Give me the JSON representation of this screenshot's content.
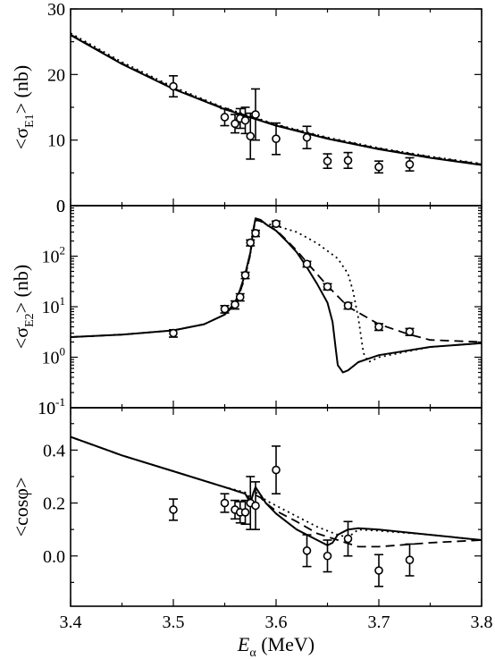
{
  "chart_data": [
    {
      "type": "line",
      "ylabel_parts": {
        "open": "<σ",
        "sub": "E1",
        "close": "> (nb)"
      },
      "xlim": [
        3.4,
        3.8
      ],
      "ylim": [
        0,
        30
      ],
      "y_scale": "linear",
      "yticks": [
        0,
        10,
        20,
        30
      ],
      "ytick_labels": [
        "0",
        "10",
        "20",
        "30"
      ],
      "series": [
        {
          "style": "solid",
          "x": [
            3.4,
            3.45,
            3.5,
            3.55,
            3.6,
            3.65,
            3.7,
            3.75,
            3.8
          ],
          "y": [
            26.0,
            21.6,
            17.8,
            14.7,
            12.2,
            10.2,
            8.6,
            7.3,
            6.2
          ]
        },
        {
          "style": "dotted",
          "x": [
            3.4,
            3.45,
            3.5,
            3.55,
            3.6,
            3.65,
            3.7,
            3.75,
            3.8
          ],
          "y": [
            26.3,
            21.9,
            18.1,
            14.9,
            12.4,
            10.4,
            8.8,
            7.5,
            6.4
          ]
        },
        {
          "style": "dashed",
          "x": [
            3.4,
            3.45,
            3.5,
            3.55,
            3.6,
            3.65,
            3.7,
            3.75,
            3.8
          ],
          "y": [
            26.1,
            21.7,
            17.9,
            14.8,
            12.3,
            10.3,
            8.7,
            7.4,
            6.3
          ]
        }
      ],
      "points": [
        {
          "x": 3.5,
          "y": 18.2,
          "err": 1.6
        },
        {
          "x": 3.55,
          "y": 13.5,
          "err": 1.3
        },
        {
          "x": 3.56,
          "y": 12.5,
          "err": 1.4
        },
        {
          "x": 3.565,
          "y": 13.3,
          "err": 1.5
        },
        {
          "x": 3.57,
          "y": 13.0,
          "err": 2.0
        },
        {
          "x": 3.575,
          "y": 10.6,
          "err": 3.5
        },
        {
          "x": 3.58,
          "y": 13.9,
          "err": 3.9
        },
        {
          "x": 3.6,
          "y": 10.2,
          "err": 2.4
        },
        {
          "x": 3.63,
          "y": 10.4,
          "err": 1.7
        },
        {
          "x": 3.65,
          "y": 6.8,
          "err": 1.1
        },
        {
          "x": 3.67,
          "y": 6.9,
          "err": 1.2
        },
        {
          "x": 3.7,
          "y": 5.9,
          "err": 0.9
        },
        {
          "x": 3.73,
          "y": 6.3,
          "err": 1.0
        }
      ]
    },
    {
      "type": "line",
      "ylabel_parts": {
        "open": "<σ",
        "sub": "E2",
        "close": "> (nb)"
      },
      "xlim": [
        3.4,
        3.8
      ],
      "ylim": [
        0.1,
        1000
      ],
      "y_scale": "log",
      "yticks": [
        0.1,
        1,
        10,
        100
      ],
      "ytick_labels": [
        [
          "10",
          "-1"
        ],
        [
          "10",
          "0"
        ],
        [
          "10",
          "1"
        ],
        [
          "10",
          "2"
        ]
      ],
      "top_label": "0",
      "series": [
        {
          "style": "solid",
          "x": [
            3.4,
            3.45,
            3.5,
            3.53,
            3.55,
            3.56,
            3.565,
            3.57,
            3.575,
            3.578,
            3.58,
            3.585,
            3.59,
            3.6,
            3.61,
            3.62,
            3.63,
            3.64,
            3.65,
            3.655,
            3.658,
            3.66,
            3.665,
            3.67,
            3.68,
            3.7,
            3.75,
            3.8
          ],
          "y": [
            2.5,
            2.8,
            3.4,
            4.5,
            7.0,
            12,
            22,
            45,
            120,
            350,
            560,
            520,
            430,
            320,
            200,
            120,
            60,
            28,
            12,
            5,
            1.5,
            0.7,
            0.5,
            0.55,
            0.8,
            1.1,
            1.6,
            1.9
          ]
        },
        {
          "style": "dashed",
          "x": [
            3.4,
            3.45,
            3.5,
            3.53,
            3.55,
            3.56,
            3.565,
            3.57,
            3.575,
            3.578,
            3.58,
            3.585,
            3.59,
            3.6,
            3.61,
            3.62,
            3.63,
            3.65,
            3.67,
            3.7,
            3.73,
            3.75,
            3.8
          ],
          "y": [
            2.5,
            2.8,
            3.4,
            4.5,
            7.0,
            11,
            20,
            40,
            110,
            320,
            520,
            490,
            420,
            330,
            210,
            130,
            75,
            26,
            10,
            4.5,
            2.8,
            2.2,
            2.0
          ]
        },
        {
          "style": "dotted",
          "x": [
            3.4,
            3.45,
            3.5,
            3.53,
            3.55,
            3.56,
            3.565,
            3.57,
            3.575,
            3.578,
            3.58,
            3.585,
            3.59,
            3.6,
            3.62,
            3.64,
            3.66,
            3.67,
            3.675,
            3.68,
            3.685,
            3.69,
            3.7,
            3.75,
            3.8
          ],
          "y": [
            2.5,
            2.8,
            3.4,
            4.5,
            7.0,
            11,
            20,
            40,
            110,
            320,
            520,
            500,
            440,
            400,
            300,
            180,
            90,
            45,
            20,
            6,
            1.2,
            0.8,
            1.0,
            1.6,
            1.9
          ]
        }
      ],
      "points": [
        {
          "x": 3.5,
          "y": 3.0,
          "err": 0.5
        },
        {
          "x": 3.55,
          "y": 9.0,
          "err": 1.5
        },
        {
          "x": 3.56,
          "y": 11.0,
          "err": 2.0
        },
        {
          "x": 3.565,
          "y": 15.5,
          "err": 2.5
        },
        {
          "x": 3.57,
          "y": 42,
          "err": 6
        },
        {
          "x": 3.575,
          "y": 185,
          "err": 25
        },
        {
          "x": 3.58,
          "y": 285,
          "err": 40
        },
        {
          "x": 3.6,
          "y": 440,
          "err": 55
        },
        {
          "x": 3.63,
          "y": 70,
          "err": 9
        },
        {
          "x": 3.65,
          "y": 25,
          "err": 3.5
        },
        {
          "x": 3.67,
          "y": 10.5,
          "err": 1.5
        },
        {
          "x": 3.7,
          "y": 4.0,
          "err": 0.6
        },
        {
          "x": 3.73,
          "y": 3.2,
          "err": 0.5
        }
      ]
    },
    {
      "type": "line",
      "ylabel_parts": {
        "open": "<cosφ>",
        "sub": "",
        "close": ""
      },
      "xlabel_parts": {
        "italic": "E",
        "sub": "α",
        "rest": " (MeV)"
      },
      "xlim": [
        3.4,
        3.8
      ],
      "ylim": [
        -0.19,
        0.56
      ],
      "y_scale": "linear",
      "yticks": [
        0.0,
        0.2,
        0.4
      ],
      "ytick_labels": [
        "0.0",
        "0.2",
        "0.4"
      ],
      "top_label": "10",
      "top_label_sup": "-1",
      "xticks": [
        3.4,
        3.5,
        3.6,
        3.7,
        3.8
      ],
      "xtick_labels": [
        "3.4",
        "3.5",
        "3.6",
        "3.7",
        "3.8"
      ],
      "series": [
        {
          "style": "solid",
          "x": [
            3.4,
            3.45,
            3.5,
            3.55,
            3.57,
            3.575,
            3.578,
            3.58,
            3.585,
            3.59,
            3.6,
            3.62,
            3.64,
            3.65,
            3.655,
            3.66,
            3.67,
            3.68,
            3.7,
            3.75,
            3.8
          ],
          "y": [
            0.45,
            0.38,
            0.32,
            0.26,
            0.235,
            0.2,
            0.24,
            0.26,
            0.23,
            0.2,
            0.16,
            0.1,
            0.06,
            0.04,
            0.05,
            0.08,
            0.1,
            0.105,
            0.1,
            0.08,
            0.06
          ]
        },
        {
          "style": "dashed",
          "x": [
            3.4,
            3.45,
            3.5,
            3.55,
            3.57,
            3.575,
            3.578,
            3.58,
            3.585,
            3.59,
            3.6,
            3.62,
            3.64,
            3.66,
            3.68,
            3.7,
            3.75,
            3.8
          ],
          "y": [
            0.45,
            0.38,
            0.32,
            0.26,
            0.235,
            0.21,
            0.225,
            0.23,
            0.22,
            0.2,
            0.17,
            0.13,
            0.085,
            0.06,
            0.035,
            0.035,
            0.05,
            0.06
          ]
        },
        {
          "style": "dotted",
          "x": [
            3.4,
            3.45,
            3.5,
            3.55,
            3.57,
            3.575,
            3.58,
            3.585,
            3.59,
            3.6,
            3.62,
            3.64,
            3.66,
            3.67,
            3.675,
            3.68,
            3.7,
            3.75,
            3.8
          ],
          "y": [
            0.45,
            0.38,
            0.32,
            0.26,
            0.24,
            0.22,
            0.24,
            0.23,
            0.21,
            0.19,
            0.15,
            0.11,
            0.08,
            0.07,
            0.085,
            0.1,
            0.095,
            0.08,
            0.06
          ]
        }
      ],
      "points": [
        {
          "x": 3.5,
          "y": 0.175,
          "err": 0.04
        },
        {
          "x": 3.55,
          "y": 0.2,
          "err": 0.035
        },
        {
          "x": 3.56,
          "y": 0.175,
          "err": 0.035
        },
        {
          "x": 3.565,
          "y": 0.165,
          "err": 0.04
        },
        {
          "x": 3.57,
          "y": 0.165,
          "err": 0.045
        },
        {
          "x": 3.575,
          "y": 0.2,
          "err": 0.1
        },
        {
          "x": 3.58,
          "y": 0.19,
          "err": 0.09
        },
        {
          "x": 3.6,
          "y": 0.325,
          "err": 0.09
        },
        {
          "x": 3.63,
          "y": 0.02,
          "err": 0.06
        },
        {
          "x": 3.65,
          "y": 0.0,
          "err": 0.06
        },
        {
          "x": 3.67,
          "y": 0.065,
          "err": 0.065
        },
        {
          "x": 3.7,
          "y": -0.055,
          "err": 0.06
        },
        {
          "x": 3.73,
          "y": -0.015,
          "err": 0.06
        }
      ]
    }
  ]
}
